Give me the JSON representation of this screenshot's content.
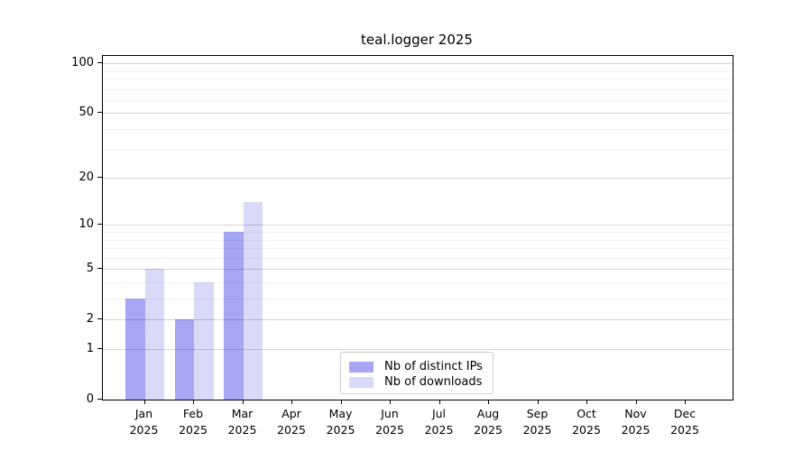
{
  "chart_data": {
    "type": "bar",
    "title": "teal.logger 2025",
    "categories": [
      "Jan 2025",
      "Feb 2025",
      "Mar 2025",
      "Apr 2025",
      "May 2025",
      "Jun 2025",
      "Jul 2025",
      "Aug 2025",
      "Sep 2025",
      "Oct 2025",
      "Nov 2025",
      "Dec 2025"
    ],
    "x_tick_months": [
      "Jan",
      "Feb",
      "Mar",
      "Apr",
      "May",
      "Jun",
      "Jul",
      "Aug",
      "Sep",
      "Oct",
      "Nov",
      "Dec"
    ],
    "x_tick_year": "2025",
    "series": [
      {
        "name": "Nb of distinct IPs",
        "color": "#a6a6f3",
        "values": [
          3,
          2,
          9,
          0,
          0,
          0,
          0,
          0,
          0,
          0,
          0,
          0
        ]
      },
      {
        "name": "Nb of downloads",
        "color": "#d9d9f8",
        "values": [
          5,
          4,
          14,
          0,
          0,
          0,
          0,
          0,
          0,
          0,
          0,
          0
        ]
      }
    ],
    "yscale": "log1p",
    "ylim": [
      0,
      110
    ],
    "y_major_ticks": [
      0,
      1,
      2,
      5,
      10,
      20,
      50,
      100
    ],
    "y_minor_ticks": [
      3,
      4,
      6,
      7,
      8,
      9,
      30,
      40,
      60,
      70,
      80,
      90
    ],
    "grid": "on",
    "legend_position": "lower center"
  },
  "colors": {
    "bar_distinct_ips": "#a6a6f3",
    "bar_downloads": "#d9d9f8",
    "grid_major": "#d9d9d9",
    "grid_minor": "#f2f2f2",
    "spine": "#000000",
    "background": "#ffffff"
  }
}
